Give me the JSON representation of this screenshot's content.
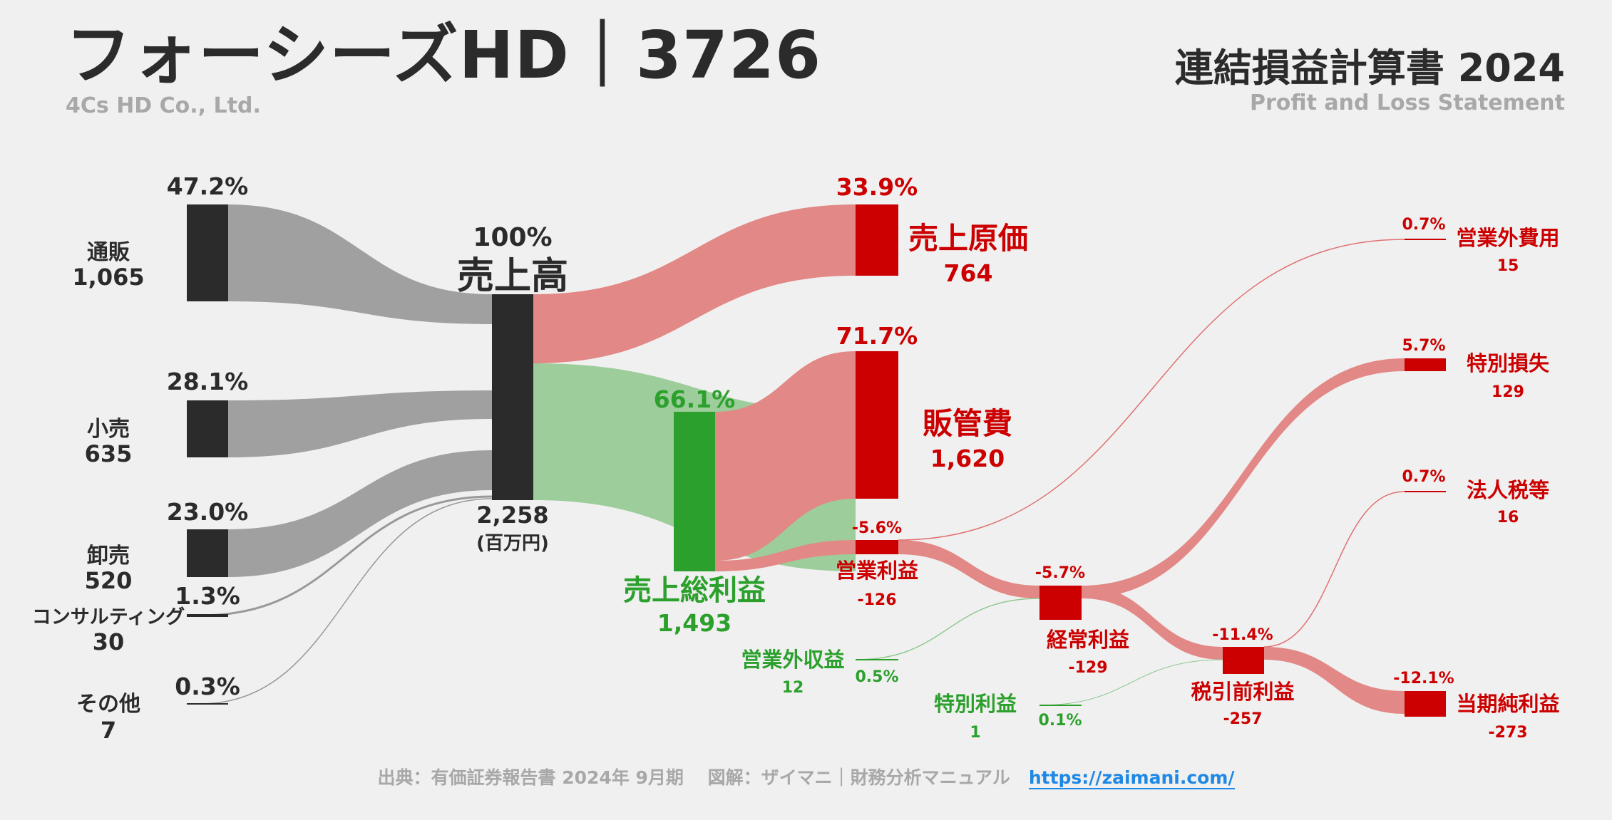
{
  "header": {
    "title": "フォーシーズHD｜3726",
    "subtitle": "4Cs HD Co., Ltd.",
    "statement_title": "連結損益計算書 2024",
    "statement_subtitle": "Profit and Loss Statement"
  },
  "footer": {
    "source": "出典：有価証券報告書 2024年 9月期　 図解：ザイマニ｜財務分析マニュアル",
    "link": "https://zaimani.com/"
  },
  "colors": {
    "dark": "#2b2b2b",
    "gray_flow": "#a0a0a0",
    "green": "#2ca02c",
    "green_flow": "#9ccd9a",
    "red": "#cc0000",
    "red_flow": "#e28886",
    "thin_red": "#e07070",
    "thin_green": "#90c890"
  },
  "chart_data": {
    "type": "sankey",
    "unit": "(百万円)",
    "revenue": {
      "label": "売上高",
      "pct": "100%",
      "value": "2,258"
    },
    "segments": [
      {
        "label": "通販",
        "value": "1,065",
        "pct": "47.2%"
      },
      {
        "label": "小売",
        "value": "635",
        "pct": "28.1%"
      },
      {
        "label": "卸売",
        "value": "520",
        "pct": "23.0%"
      },
      {
        "label": "コンサルティング",
        "value": "30",
        "pct": "1.3%"
      },
      {
        "label": "その他",
        "value": "7",
        "pct": "0.3%"
      }
    ],
    "cost_of_sales": {
      "label": "売上原価",
      "value": "764",
      "pct": "33.9%"
    },
    "gross_profit": {
      "label": "売上総利益",
      "value": "1,493",
      "pct": "66.1%"
    },
    "sga": {
      "label": "販管費",
      "value": "1,620",
      "pct": "71.7%"
    },
    "operating_profit": {
      "label": "営業利益",
      "value": "-126",
      "pct": "-5.6%"
    },
    "non_op_income": {
      "label": "営業外収益",
      "value": "12",
      "pct": "0.5%"
    },
    "non_op_expense": {
      "label": "営業外費用",
      "value": "15",
      "pct": "0.7%"
    },
    "ordinary_profit": {
      "label": "経常利益",
      "value": "-129",
      "pct": "-5.7%"
    },
    "extraordinary_income": {
      "label": "特別利益",
      "value": "1",
      "pct": "0.1%"
    },
    "extraordinary_loss": {
      "label": "特別損失",
      "value": "129",
      "pct": "5.7%"
    },
    "pretax_profit": {
      "label": "税引前利益",
      "value": "-257",
      "pct": "-11.4%"
    },
    "income_tax": {
      "label": "法人税等",
      "value": "16",
      "pct": "0.7%"
    },
    "net_profit": {
      "label": "当期純利益",
      "value": "-273",
      "pct": "-12.1%"
    }
  }
}
